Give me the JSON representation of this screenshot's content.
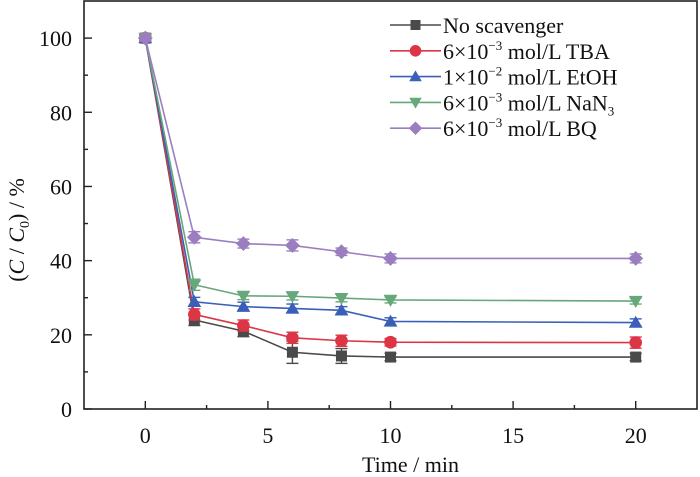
{
  "chart_data": {
    "type": "line",
    "title": "",
    "xlabel": "Time / min",
    "ylabel": {
      "open": "(",
      "var1": "C",
      "sep": " / ",
      "var2": "C",
      "var2_sub": "0",
      "close": ") / %"
    },
    "xlim": [
      -2.5,
      22.5
    ],
    "ylim": [
      0,
      110
    ],
    "xticks": [
      0,
      5,
      10,
      15,
      20
    ],
    "xtick_labels": [
      "0",
      "5",
      "10",
      "15",
      "20"
    ],
    "x_minor_ticks": [
      2.5,
      7.5,
      12.5,
      17.5
    ],
    "yticks": [
      0,
      20,
      40,
      60,
      80,
      100
    ],
    "ytick_labels": [
      "0",
      "20",
      "40",
      "60",
      "80",
      "100"
    ],
    "y_minor_ticks": [
      10,
      30,
      50,
      70,
      90
    ],
    "grid": false,
    "legend_position": "top-right",
    "x": [
      0,
      2,
      4,
      6,
      8,
      10,
      20
    ],
    "series": [
      {
        "name": "No scavenger",
        "legend": {
          "prefix": "No scavenger",
          "sup": "",
          "suffix": "",
          "sub": ""
        },
        "color": "#4a4a4a",
        "marker": "square",
        "values": [
          100,
          24.0,
          21.0,
          15.3,
          14.3,
          14.0,
          14.0
        ],
        "errors": [
          0.8,
          1.5,
          1.5,
          3.0,
          2.0,
          1.0,
          1.0
        ]
      },
      {
        "name": "6×10⁻³ mol/L TBA",
        "legend": {
          "prefix": "6×10",
          "sup": "−3",
          "suffix": " mol/L TBA",
          "sub": ""
        },
        "color": "#dc3545",
        "marker": "circle",
        "values": [
          100,
          25.5,
          22.5,
          19.2,
          18.4,
          18.0,
          17.9
        ],
        "errors": [
          0.8,
          1.5,
          1.5,
          1.5,
          1.5,
          1.0,
          1.5
        ]
      },
      {
        "name": "1×10⁻² mol/L EtOH",
        "legend": {
          "prefix": "1×10",
          "sup": "−2",
          "suffix": " mol/L EtOH",
          "sub": ""
        },
        "color": "#3a5fb8",
        "marker": "triangle-up",
        "values": [
          100,
          28.9,
          27.6,
          27.1,
          26.6,
          23.6,
          23.3
        ],
        "errors": [
          0.8,
          1.2,
          1.2,
          1.2,
          1.0,
          1.0,
          1.0
        ]
      },
      {
        "name": "6×10⁻³ mol/L NaN₃",
        "legend": {
          "prefix": "6×10",
          "sup": "−3",
          "suffix": " mol/L NaN",
          "sub": "3"
        },
        "color": "#66a87a",
        "marker": "triangle-down",
        "values": [
          100,
          33.5,
          30.5,
          30.4,
          29.9,
          29.4,
          29.1
        ],
        "errors": [
          0.8,
          1.5,
          1.0,
          1.0,
          1.0,
          0.8,
          0.8
        ]
      },
      {
        "name": "6×10⁻³ mol/L BQ",
        "legend": {
          "prefix": "6×10",
          "sup": "−3",
          "suffix": " mol/L BQ",
          "sub": ""
        },
        "color": "#9b7ec0",
        "marker": "diamond",
        "values": [
          100,
          46.3,
          44.6,
          44.1,
          42.4,
          40.6,
          40.6
        ],
        "errors": [
          0.8,
          1.5,
          1.2,
          1.5,
          1.0,
          1.2,
          1.2
        ]
      }
    ]
  }
}
